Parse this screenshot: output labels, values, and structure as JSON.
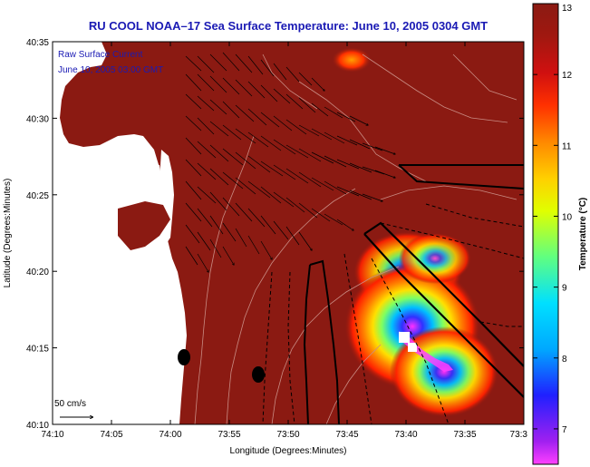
{
  "chart_data": {
    "type": "heatmap",
    "title": "RU COOL  NOAA–17  Sea Surface Temperature:  June 10, 2005 0304 GMT",
    "xlabel": "Longitude (Degrees:Minutes)",
    "ylabel": "Latitude (Degrees:Minutes)",
    "x_ticks": [
      "74:10",
      "74:05",
      "74:00",
      "73:55",
      "73:50",
      "73:45",
      "73:40",
      "73:35",
      "73:3"
    ],
    "y_ticks": [
      "40:35",
      "40:30",
      "40:25",
      "40:20",
      "40:15",
      "40:10"
    ],
    "xlim": [
      "74:10",
      "73:30"
    ],
    "ylim": [
      "40:10",
      "40:35"
    ],
    "overlay": {
      "label_line1": "Raw Surface Current",
      "label_line2": "June 10, 2005 03:00 GMT",
      "scale_label": "50 cm/s"
    },
    "colorbar": {
      "label": "Temperature (°C)",
      "range": [
        6.5,
        13
      ],
      "ticks": [
        "13",
        "12",
        "11",
        "10",
        "9",
        "8",
        "7"
      ]
    },
    "colors": {
      "land": "#ffffff",
      "sea_dominant": "#8b1a12",
      "title_text": "#1a1ab4",
      "overlay_text": "#1a1ab4",
      "contour": "#c98c84"
    }
  }
}
